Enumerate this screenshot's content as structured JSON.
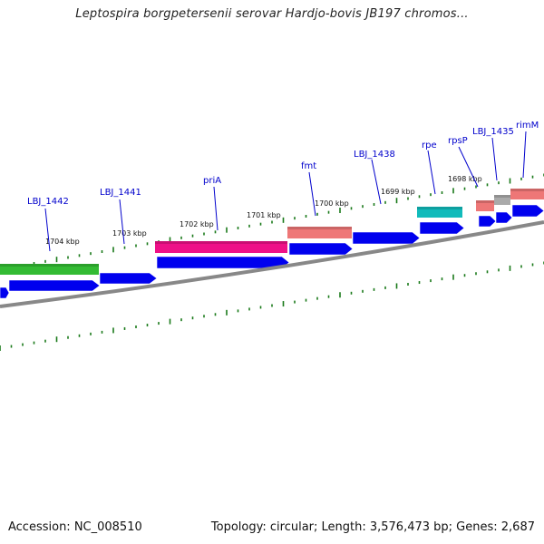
{
  "title": "Leptospira borgpetersenii serovar Hardjo-bovis JB197 chromos...",
  "footer": {
    "accession": "Accession: NC_008510",
    "info": "Topology: circular; Length: 3,576,473 bp; Genes: 2,687"
  },
  "colors": {
    "cds": "#0000ee",
    "backbone": "#777777",
    "tick": "#1a7a1a",
    "gene_label": "#0000cc",
    "green_feature": "#33bb33",
    "magenta_feature": "#ee1188",
    "salmon_feature": "#ee7777",
    "cyan_feature": "#11bbbb",
    "gray_feature": "#aaaaaa"
  },
  "kbp_labels": [
    "1704 kbp",
    "1703 kbp",
    "1702 kbp",
    "1701 kbp",
    "1700 kbp",
    "1699 kbp",
    "1698 kbp"
  ],
  "gene_labels": [
    "LBJ_1442",
    "LBJ_1441",
    "priA",
    "fmt",
    "LBJ_1438",
    "rpe",
    "rpsP",
    "LBJ_1435",
    "rimM"
  ]
}
